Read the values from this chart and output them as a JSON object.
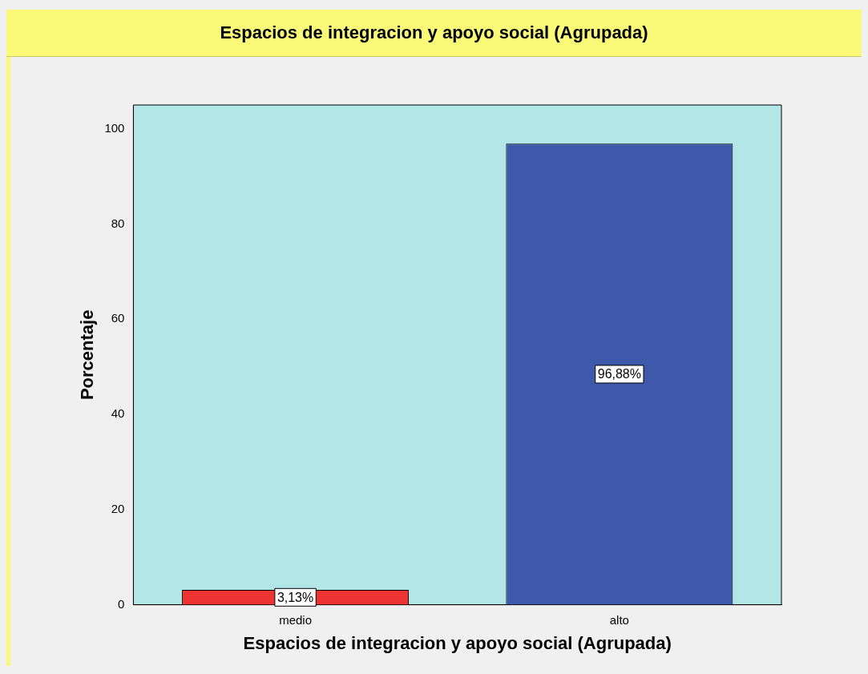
{
  "chart_data": {
    "type": "bar",
    "title": "Espacios de integracion y apoyo social (Agrupada)",
    "xlabel": "Espacios de integracion y apoyo social (Agrupada)",
    "ylabel": "Porcentaje",
    "categories": [
      "medio",
      "alto"
    ],
    "values": [
      3.13,
      96.88
    ],
    "colors": [
      "#ee3333",
      "#3e58aa"
    ],
    "value_labels": [
      "3,13%",
      "96,88%"
    ],
    "ylim": [
      0,
      105
    ],
    "yticks": [
      0,
      20,
      40,
      60,
      80,
      100
    ],
    "grid": false,
    "legend": false
  }
}
